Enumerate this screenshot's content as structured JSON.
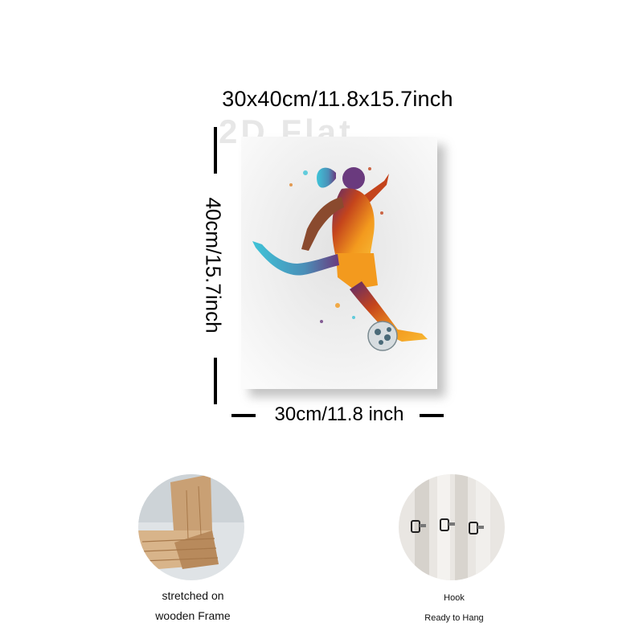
{
  "dimensions": {
    "overall": "30x40cm/11.8x15.7inch",
    "height": "40cm/15.7inch",
    "width": "30cm/11.8 inch"
  },
  "watermark": "2D Flat",
  "features": [
    {
      "id": "frame",
      "lines": [
        "stretched on",
        "wooden Frame"
      ],
      "icon": "wooden-frame-corner"
    },
    {
      "id": "hook",
      "lines": [
        "Hook",
        "Ready to Hang"
      ],
      "icon": "hanging-hooks"
    }
  ],
  "colors": {
    "text": "#000000",
    "wood": "#d8b48a",
    "paint_orange": "#f39a1e",
    "paint_cyan": "#3fc4d8"
  }
}
